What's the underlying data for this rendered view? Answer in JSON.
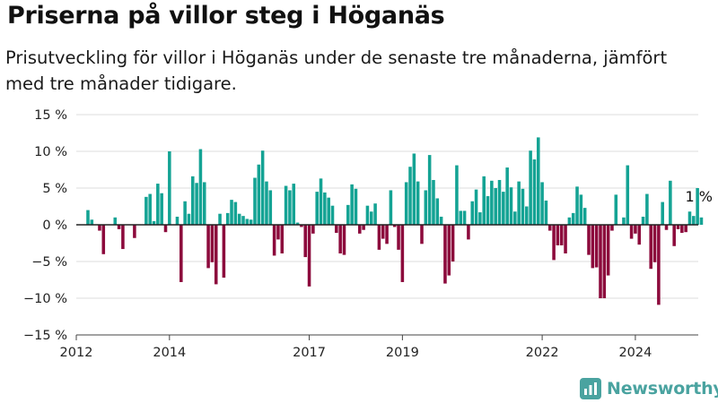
{
  "header": {
    "title": "Priserna på villor steg i Höganäs",
    "subtitle": "Prisutveckling för villor i Höganäs under de senaste tre månaderna, jämfört med tre månader tidigare."
  },
  "brand": {
    "name": "Newsworthy",
    "icon": "newsworthy-chart-icon",
    "color": "#4aa3a0"
  },
  "chart_data": {
    "type": "bar",
    "title": "Priserna på villor steg i Höganäs",
    "subtitle": "Prisutveckling för villor i Höganäs under de senaste tre månaderna, jämfört med tre månader tidigare.",
    "xlabel": "",
    "ylabel": "",
    "ylim": [
      -15,
      15
    ],
    "yticks": [
      15,
      10,
      5,
      0,
      -5,
      -10,
      -15
    ],
    "ytick_labels": [
      "15 %",
      "10 %",
      "5 %",
      "0 %",
      "−5 %",
      "−10 %",
      "−15 %"
    ],
    "xticks": [
      2012,
      2014,
      2017,
      2019,
      2022,
      2024
    ],
    "xtick_labels": [
      "2012",
      "2014",
      "2017",
      "2019",
      "2022",
      "2024"
    ],
    "xlim": [
      2012.0,
      2025.35
    ],
    "grid": true,
    "colors": {
      "positive": "#14a394",
      "negative": "#8c0a3c",
      "zero_line": "#222222",
      "grid": "#dddddd"
    },
    "annotation": {
      "text": "1 %"
    },
    "series": [
      {
        "values": [
          2,
          0.7,
          null,
          -0.8,
          -4,
          null,
          null,
          1,
          -0.6,
          -3.3,
          null,
          null,
          -1.8,
          null,
          null,
          3.8,
          4.2,
          0.5,
          5.6,
          4.3,
          -1,
          10,
          null,
          1.1,
          -7.8,
          3.2,
          1.5,
          6.6,
          5.7,
          10.3,
          5.8,
          -5.9,
          -5.1,
          -8.1,
          1.5,
          -7.2,
          1.6,
          3.4,
          3.1,
          1.5,
          1.2,
          0.8,
          0.7,
          6.4,
          8.2,
          10.1,
          5.9,
          4.7,
          -4.2,
          -2,
          -3.9,
          5.3,
          4.7,
          5.6,
          0.3,
          -0.3,
          -4.4,
          -8.4,
          -1.2,
          4.5,
          6.3,
          4.4,
          3.7,
          2.6,
          -1.1,
          -3.9,
          -4.1,
          2.7,
          5.5,
          4.9,
          -1.2,
          -0.7,
          2.6,
          1.8,
          2.9,
          -3.4,
          -1.9,
          -2.6,
          4.7,
          -0.3,
          -3.4,
          -7.8,
          5.8,
          7.9,
          9.7,
          5.9,
          -2.6,
          4.7,
          9.5,
          6.1,
          3.6,
          1.1,
          -8,
          -6.9,
          -5,
          8.1,
          1.9,
          1.9,
          -2,
          3.2,
          4.8,
          1.7,
          6.6,
          3.9,
          6,
          5,
          6.1,
          4.5,
          7.8,
          5.1,
          1.8,
          5.9,
          4.9,
          2.5,
          10.1,
          8.9,
          11.9,
          5.8,
          3.3,
          -0.8,
          -4.8,
          -2.8,
          -2.8,
          -3.9,
          1,
          1.6,
          5.2,
          4.1,
          2.3,
          -4.1,
          -5.9,
          -5.8,
          -10,
          -10,
          -6.9,
          -0.8,
          4.1,
          null,
          1,
          8.1,
          -1.9,
          -1.2,
          -2.7,
          1.1,
          4.2,
          -6,
          -5.1,
          -10.9,
          3.1,
          -0.7,
          6,
          -2.9,
          -0.6,
          -1.1,
          -1,
          1.8,
          1.2,
          5,
          1
        ]
      }
    ]
  }
}
